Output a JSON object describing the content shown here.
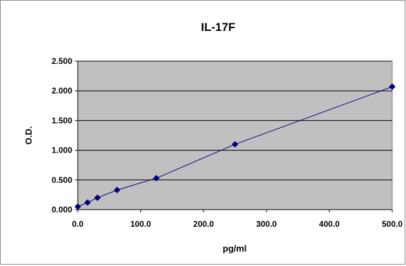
{
  "chart_data": {
    "type": "scatter",
    "title": "IL-17F",
    "xlabel": "pg/ml",
    "ylabel": "O.D.",
    "xlim": [
      0,
      500
    ],
    "ylim": [
      0,
      2.5
    ],
    "x_ticks": [
      "0.0",
      "100.0",
      "200.0",
      "300.0",
      "400.0",
      "500.0"
    ],
    "y_ticks": [
      "0.000",
      "0.500",
      "1.000",
      "1.500",
      "2.000",
      "2.500"
    ],
    "x_tick_values": [
      0,
      100,
      200,
      300,
      400,
      500
    ],
    "y_tick_values": [
      0,
      0.5,
      1.0,
      1.5,
      2.0,
      2.5
    ],
    "grid": "horizontal",
    "legend": "none",
    "series": [
      {
        "marker": "diamond",
        "line": true,
        "color": "#00007f",
        "points": [
          {
            "x": 0,
            "y": 0.05
          },
          {
            "x": 15.6,
            "y": 0.12
          },
          {
            "x": 31.3,
            "y": 0.2
          },
          {
            "x": 62.5,
            "y": 0.33
          },
          {
            "x": 125,
            "y": 0.53
          },
          {
            "x": 250,
            "y": 1.1
          },
          {
            "x": 500,
            "y": 2.07
          }
        ]
      }
    ],
    "plot_background": "#c0c0c0"
  }
}
